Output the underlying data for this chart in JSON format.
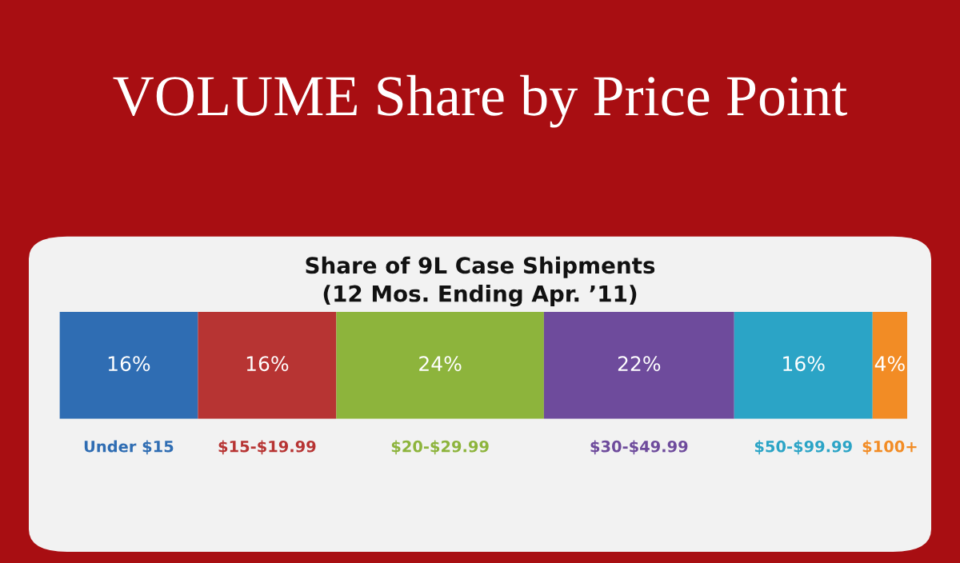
{
  "chart_data": {
    "type": "bar",
    "title": "VOLUME Share by Price Point",
    "subtitle": "Share of 9L Case Shipments\n(12 Mos. Ending Apr. ’11)",
    "orientation": "horizontal",
    "stacked": true,
    "categories": [
      null
    ],
    "series": [
      {
        "name": "Under $15",
        "color": "#2f6db3",
        "values": [
          16
        ],
        "value_labels": [
          "16%"
        ]
      },
      {
        "name": "$15-$19.99",
        "color": "#b73433",
        "values": [
          16
        ],
        "value_labels": [
          "16%"
        ]
      },
      {
        "name": "$20-$29.99",
        "color": "#8db43c",
        "values": [
          24
        ],
        "value_labels": [
          "24%"
        ]
      },
      {
        "name": "$30-$49.99",
        "color": "#6e4b9c",
        "values": [
          22
        ],
        "value_labels": [
          "22%"
        ]
      },
      {
        "name": "$50-$99.99",
        "color": "#2ba4c6",
        "values": [
          16
        ],
        "value_labels": [
          "16%"
        ]
      },
      {
        "name": "$100+",
        "color": "#f28c25",
        "values": [
          4
        ],
        "value_labels": [
          "4%"
        ]
      }
    ]
  }
}
